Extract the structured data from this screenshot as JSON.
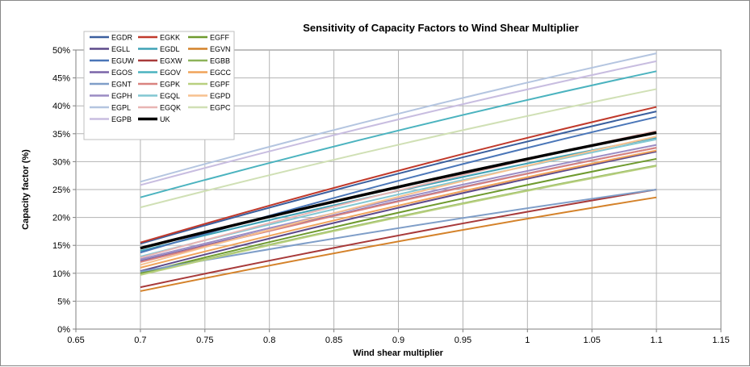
{
  "chart_data": {
    "type": "line",
    "title": "Sensitivity of Capacity Factors to Wind Shear Multiplier",
    "xlabel": "Wind shear multiplier",
    "ylabel": "Capacity factor (%)",
    "xlim": [
      0.65,
      1.15
    ],
    "ylim": [
      0,
      0.5
    ],
    "x_ticks": [
      0.65,
      0.7,
      0.75,
      0.8,
      0.85,
      0.9,
      0.95,
      1,
      1.05,
      1.1,
      1.15
    ],
    "x_tick_labels": [
      "0.65",
      "0.7",
      "0.75",
      "0.8",
      "0.85",
      "0.9",
      "0.95",
      "1",
      "1.05",
      "1.1",
      "1.15"
    ],
    "y_ticks": [
      0,
      0.05,
      0.1,
      0.15,
      0.2,
      0.25,
      0.3,
      0.35,
      0.4,
      0.45,
      0.5
    ],
    "y_tick_labels": [
      "0%",
      "5%",
      "10%",
      "15%",
      "20%",
      "25%",
      "30%",
      "35%",
      "40%",
      "45%",
      "50%"
    ],
    "grid": true,
    "legend_position": "top-left",
    "x": [
      0.7,
      1.1
    ],
    "series": [
      {
        "name": "EGDR",
        "color": "#3a5f9e",
        "values": [
          0.153,
          0.39
        ]
      },
      {
        "name": "EGKK",
        "color": "#c0392b",
        "values": [
          0.155,
          0.398
        ]
      },
      {
        "name": "EGFF",
        "color": "#6e9a2e",
        "values": [
          0.1,
          0.305
        ]
      },
      {
        "name": "EGLL",
        "color": "#5d4a8a",
        "values": [
          0.104,
          0.318
        ]
      },
      {
        "name": "EGDL",
        "color": "#3fa2b5",
        "values": [
          0.14,
          0.343
        ]
      },
      {
        "name": "EGVN",
        "color": "#d4822a",
        "values": [
          0.068,
          0.236
        ]
      },
      {
        "name": "EGUW",
        "color": "#4a76b8",
        "values": [
          0.137,
          0.38
        ]
      },
      {
        "name": "EGXW",
        "color": "#a83a3a",
        "values": [
          0.075,
          0.25
        ]
      },
      {
        "name": "EGBB",
        "color": "#8db35a",
        "values": [
          0.098,
          0.293
        ]
      },
      {
        "name": "EGOS",
        "color": "#7a65a8",
        "values": [
          0.122,
          0.325
        ]
      },
      {
        "name": "EGOV",
        "color": "#4bb3bf",
        "values": [
          0.236,
          0.462
        ]
      },
      {
        "name": "EGCC",
        "color": "#f0a35a",
        "values": [
          0.11,
          0.32
        ]
      },
      {
        "name": "EGNT",
        "color": "#7f9ec8",
        "values": [
          0.103,
          0.25
        ]
      },
      {
        "name": "EGPK",
        "color": "#d9837f",
        "values": [
          0.12,
          0.325
        ]
      },
      {
        "name": "EGPF",
        "color": "#b8d07f",
        "values": [
          0.097,
          0.292
        ]
      },
      {
        "name": "EGPH",
        "color": "#9b8cc4",
        "values": [
          0.125,
          0.33
        ]
      },
      {
        "name": "EGQL",
        "color": "#82c7d2",
        "values": [
          0.13,
          0.34
        ]
      },
      {
        "name": "EGPD",
        "color": "#f7c18f",
        "values": [
          0.115,
          0.345
        ]
      },
      {
        "name": "EGPL",
        "color": "#b4c5e0",
        "values": [
          0.264,
          0.494
        ]
      },
      {
        "name": "EGQK",
        "color": "#e8b5b3",
        "values": [
          0.128,
          0.355
        ]
      },
      {
        "name": "EGPC",
        "color": "#d0e0b5",
        "values": [
          0.218,
          0.43
        ]
      },
      {
        "name": "EGPB",
        "color": "#c8bde0",
        "values": [
          0.258,
          0.48
        ]
      },
      {
        "name": "UK",
        "color": "#000000",
        "values": [
          0.145,
          0.352
        ]
      }
    ]
  }
}
